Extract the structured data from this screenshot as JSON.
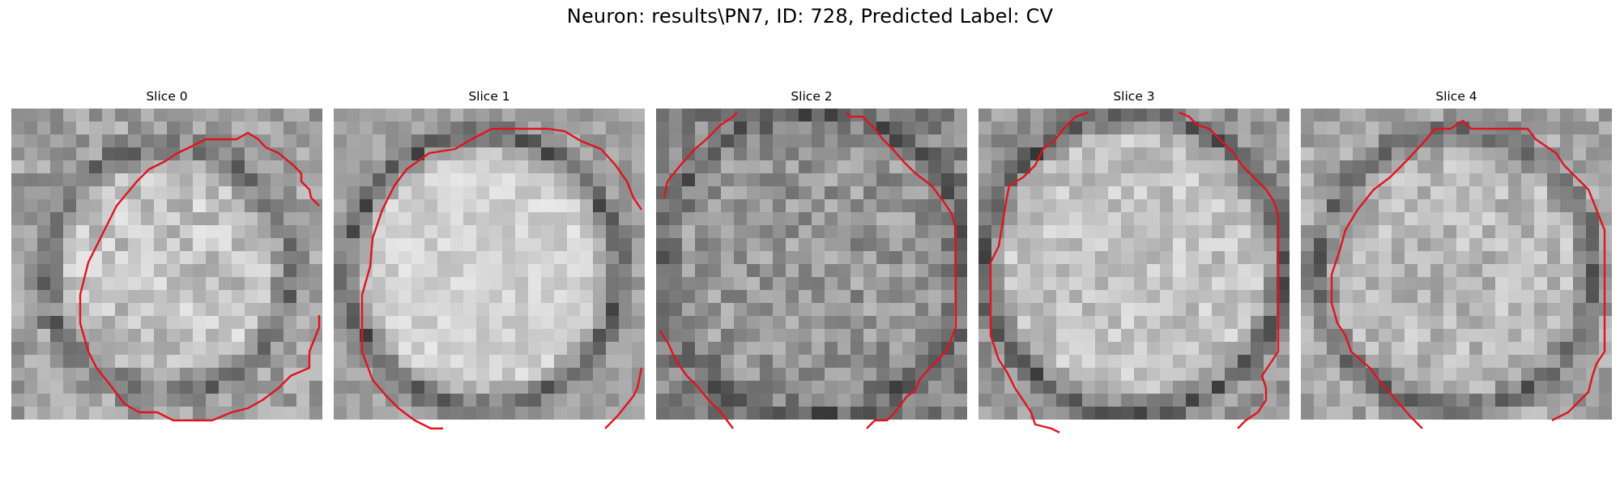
{
  "figure": {
    "title": "Neuron: results\\PN7, ID: 728, Predicted Label: CV",
    "contour_color": "#e0141e"
  },
  "slices": [
    {
      "title": "Slice 0"
    },
    {
      "title": "Slice 1"
    },
    {
      "title": "Slice 2"
    },
    {
      "title": "Slice 3"
    },
    {
      "title": "Slice 4"
    }
  ]
}
